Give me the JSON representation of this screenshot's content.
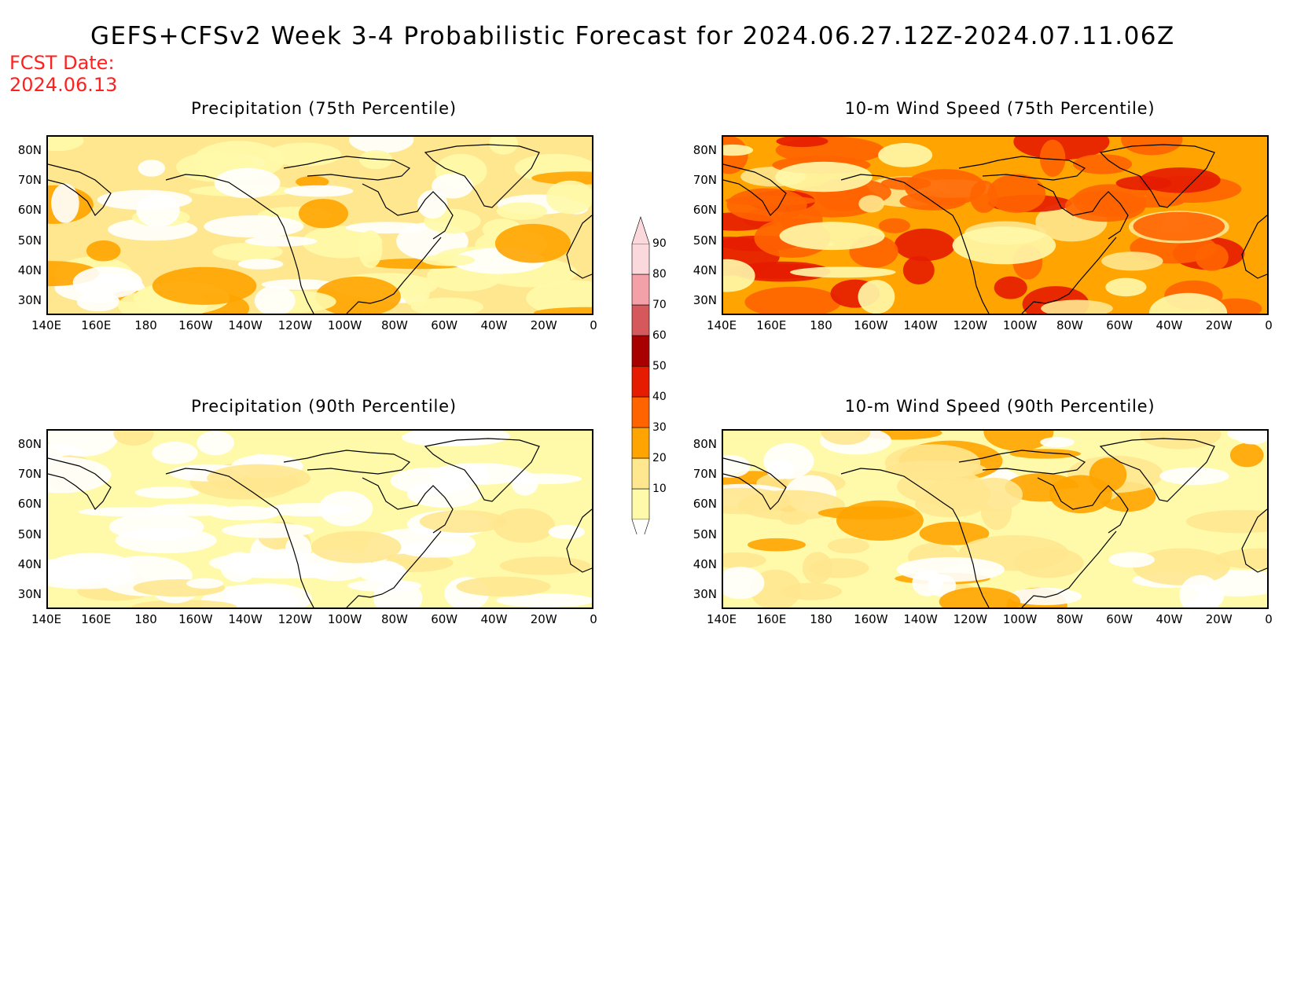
{
  "title": "GEFS+CFSv2 Week 3-4 Probabilistic Forecast for 2024.06.27.12Z-2024.07.11.06Z",
  "fcst_date_label": "FCST Date:",
  "fcst_date": "2024.06.13",
  "lat_labels": [
    "80N",
    "70N",
    "60N",
    "50N",
    "40N",
    "30N"
  ],
  "lon_labels": [
    "140E",
    "160E",
    "180",
    "160W",
    "140W",
    "120W",
    "100W",
    "80W",
    "60W",
    "40W",
    "20W",
    "0"
  ],
  "colorbar": {
    "labels": [
      "90",
      "80",
      "70",
      "60",
      "50",
      "40",
      "30",
      "20",
      "10"
    ],
    "colors": [
      "#ffffff",
      "#fffaaa",
      "#ffe78f",
      "#ffa400",
      "#ff6400",
      "#e51c00",
      "#a80000",
      "#d4585c",
      "#f4a0a8",
      "#fbd8dc"
    ]
  },
  "panels": [
    {
      "title": "Precipitation (75th Percentile)",
      "base_color": "#ffe78f"
    },
    {
      "title": "10-m Wind Speed (75th Percentile)",
      "base_color": "#ffa400"
    },
    {
      "title": "Precipitation (90th Percentile)",
      "base_color": "#fffaaa"
    },
    {
      "title": "10-m Wind Speed (90th Percentile)",
      "base_color": "#fffaaa"
    }
  ]
}
